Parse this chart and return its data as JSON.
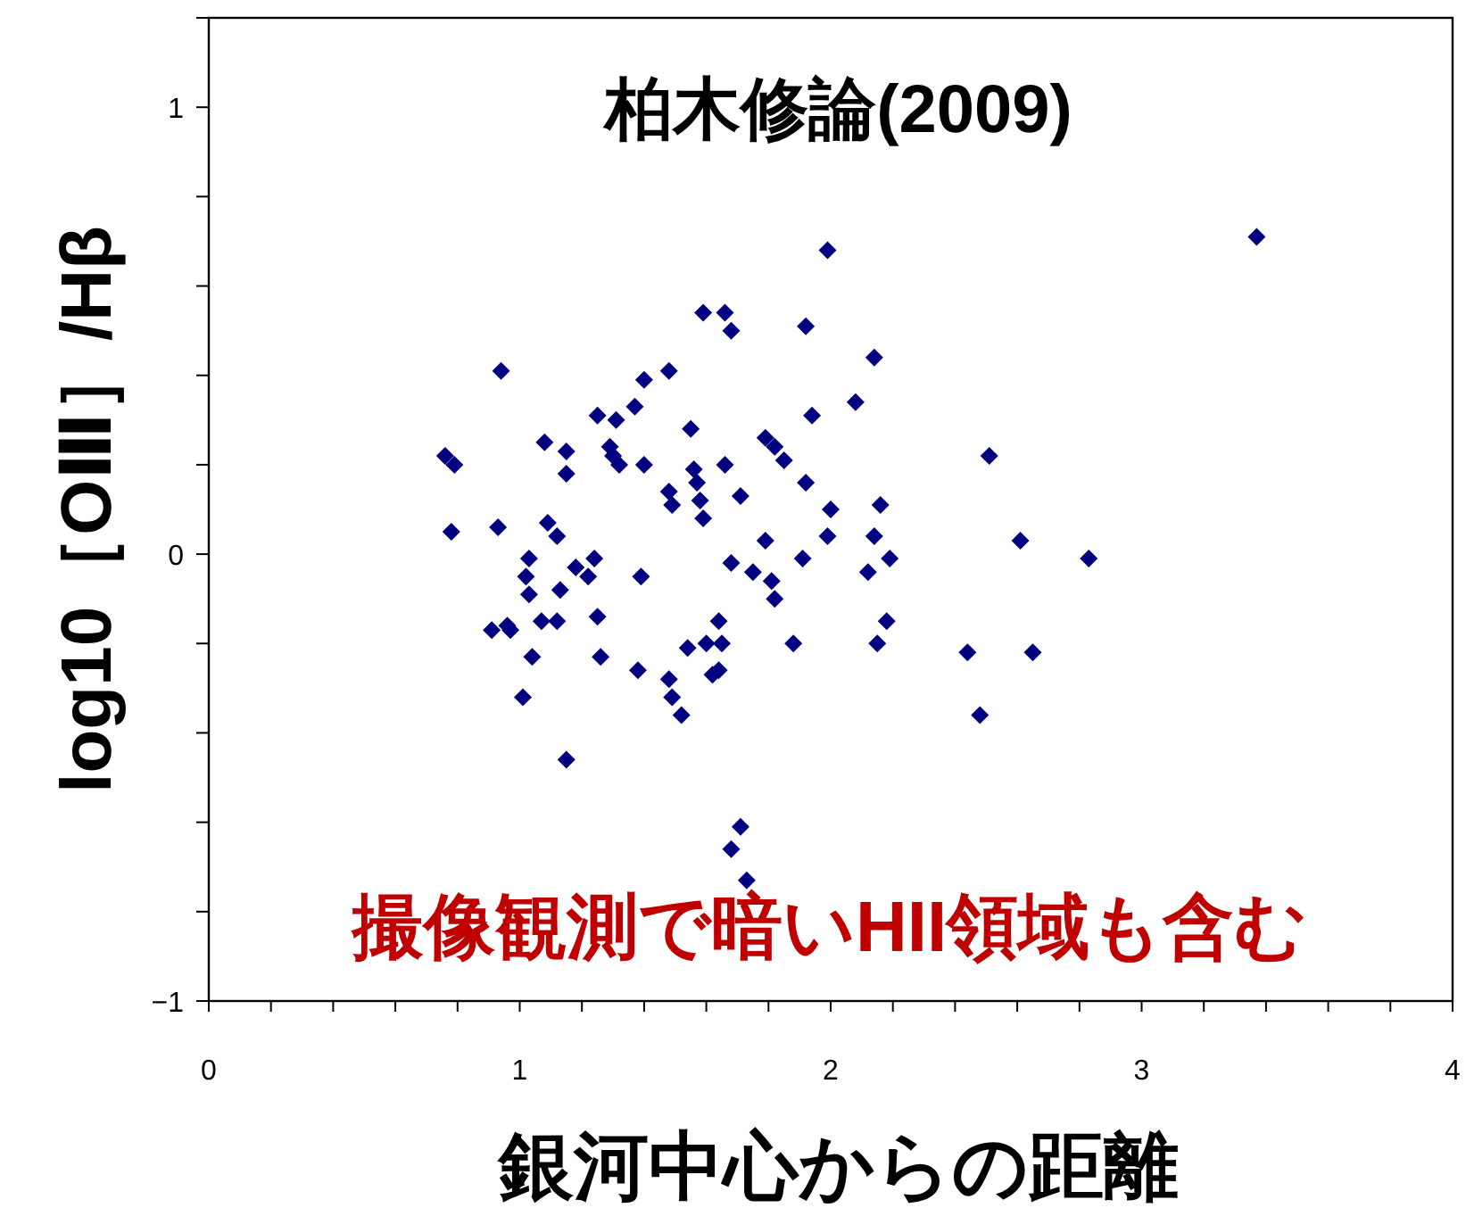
{
  "chart_data": {
    "type": "scatter",
    "title": "柏木修論(2009)",
    "xlabel": "銀河中心からの距離",
    "ylabel": "log10［OⅢ］/Hβ",
    "annotations": [
      "撮像観測で暗いHII領域も含む"
    ],
    "marker": "diamond",
    "xlim": [
      0,
      4
    ],
    "ylim": [
      -1,
      1.2
    ],
    "xticks": [
      0,
      {
        "value": 0.2,
        "label": null
      },
      {
        "value": 0.4,
        "label": null
      },
      {
        "value": 0.6,
        "label": null
      },
      {
        "value": 0.8,
        "label": null
      },
      1,
      {
        "value": 1.2,
        "label": null
      },
      {
        "value": 1.4,
        "label": null
      },
      {
        "value": 1.6,
        "label": null
      },
      {
        "value": 1.8,
        "label": null
      },
      2,
      {
        "value": 2.2,
        "label": null
      },
      {
        "value": 2.4,
        "label": null
      },
      {
        "value": 2.6,
        "label": null
      },
      {
        "value": 2.8,
        "label": null
      },
      3,
      {
        "value": 3.2,
        "label": null
      },
      {
        "value": 3.4,
        "label": null
      },
      {
        "value": 3.6,
        "label": null
      },
      {
        "value": 3.8,
        "label": null
      },
      4
    ],
    "yticks": [
      {
        "value": -1,
        "label": "−1"
      },
      {
        "value": -0.8,
        "label": null
      },
      {
        "value": -0.6,
        "label": null
      },
      {
        "value": -0.4,
        "label": null
      },
      {
        "value": -0.2,
        "label": null
      },
      0,
      {
        "value": 0.2,
        "label": null
      },
      {
        "value": 0.4,
        "label": null
      },
      {
        "value": 0.6,
        "label": null
      },
      {
        "value": 0.8,
        "label": null
      },
      1,
      {
        "value": 1.2,
        "label": null
      }
    ],
    "series": [
      {
        "color": "#000080",
        "x": [
          0.94,
          0.76,
          0.79,
          1.08,
          1.15,
          1.15,
          1.25,
          1.31,
          1.37,
          1.4,
          1.48,
          1.29,
          1.3,
          1.32,
          1.4,
          1.55,
          1.56,
          1.57,
          1.58,
          1.59,
          1.48,
          1.49,
          1.66,
          1.71,
          0.78,
          0.93,
          1.09,
          1.12,
          1.03,
          1.02,
          1.03,
          1.18,
          1.24,
          1.22,
          1.13,
          1.39,
          1.68,
          1.75,
          0.91,
          0.96,
          0.97,
          1.07,
          1.12,
          1.25,
          1.04,
          1.26,
          1.01,
          1.15,
          1.38,
          1.48,
          1.49,
          1.52,
          1.54,
          1.6,
          1.65,
          1.64,
          1.62,
          1.64,
          1.99,
          1.59,
          1.66,
          1.68,
          1.92,
          2.14,
          2.08,
          1.94,
          1.79,
          1.82,
          1.85,
          1.92,
          2.0,
          2.16,
          2.51,
          2.61,
          1.79,
          1.99,
          2.14,
          1.81,
          1.82,
          1.91,
          2.12,
          2.19,
          2.18,
          1.88,
          2.15,
          2.44,
          2.48,
          1.71,
          1.68,
          1.73,
          3.37,
          2.83,
          2.65
        ],
        "values": [
          0.41,
          0.22,
          0.2,
          0.25,
          0.23,
          0.18,
          0.31,
          0.3,
          0.33,
          0.39,
          0.41,
          0.24,
          0.22,
          0.2,
          0.2,
          0.28,
          0.19,
          0.16,
          0.12,
          0.08,
          0.14,
          0.11,
          0.2,
          0.13,
          0.05,
          0.06,
          0.07,
          0.04,
          -0.01,
          -0.05,
          -0.09,
          -0.03,
          -0.01,
          -0.05,
          -0.08,
          -0.05,
          -0.02,
          -0.04,
          -0.17,
          -0.16,
          -0.17,
          -0.15,
          -0.15,
          -0.14,
          -0.23,
          -0.23,
          -0.32,
          -0.46,
          -0.26,
          -0.28,
          -0.32,
          -0.36,
          -0.21,
          -0.2,
          -0.2,
          -0.15,
          -0.27,
          -0.26,
          0.68,
          0.54,
          0.54,
          0.5,
          0.51,
          0.44,
          0.34,
          0.31,
          0.26,
          0.24,
          0.21,
          0.16,
          0.1,
          0.11,
          0.22,
          0.03,
          0.03,
          0.04,
          0.04,
          -0.06,
          -0.1,
          -0.01,
          -0.04,
          -0.01,
          -0.15,
          -0.2,
          -0.2,
          -0.22,
          -0.36,
          -0.61,
          -0.66,
          -0.73,
          0.71,
          -0.01,
          -0.22
        ]
      }
    ]
  }
}
